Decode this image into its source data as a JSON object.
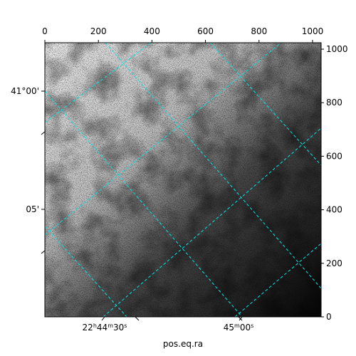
{
  "chart_data": {
    "type": "image",
    "x_label": "pos.eq.ra",
    "ra_ticklabels": [
      [
        "22",
        "h",
        "44",
        "m",
        "30",
        "s"
      ],
      [
        "45",
        "m",
        "00",
        "s"
      ]
    ],
    "dec_ticklabels": [
      "41°00'",
      "05'"
    ],
    "xlim": [
      0,
      1032
    ],
    "ylim": [
      0,
      1024
    ],
    "xticks": [
      0,
      200,
      400,
      600,
      800,
      1000
    ],
    "yticks": [
      0,
      200,
      400,
      600,
      800,
      1000
    ]
  }
}
